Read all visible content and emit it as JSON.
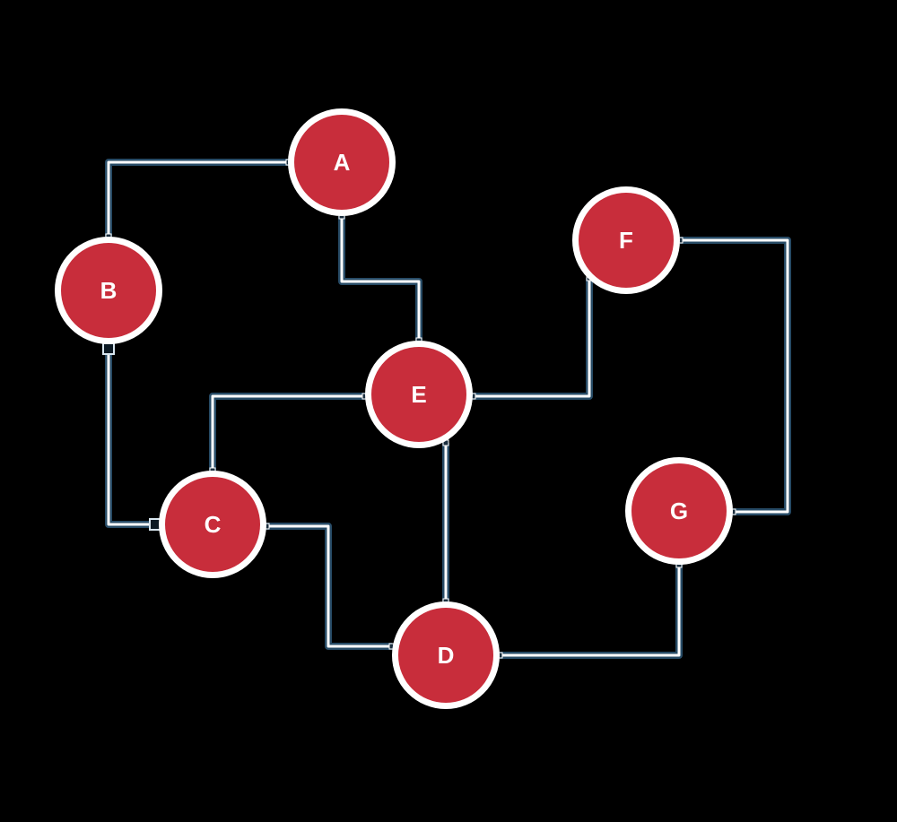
{
  "diagram": {
    "background": "#000000",
    "node_fill": "#c82d3b",
    "node_ring": "#ffffff",
    "edge_outer": "#274b66",
    "edge_inner": "#ffffff",
    "nodes": [
      {
        "id": "A",
        "label": "A"
      },
      {
        "id": "B",
        "label": "B"
      },
      {
        "id": "C",
        "label": "C"
      },
      {
        "id": "D",
        "label": "D"
      },
      {
        "id": "E",
        "label": "E"
      },
      {
        "id": "F",
        "label": "F"
      },
      {
        "id": "G",
        "label": "G"
      }
    ],
    "edges": [
      {
        "from": "A",
        "to": "B"
      },
      {
        "from": "A",
        "to": "E"
      },
      {
        "from": "B",
        "to": "C"
      },
      {
        "from": "C",
        "to": "E"
      },
      {
        "from": "C",
        "to": "D"
      },
      {
        "from": "E",
        "to": "D"
      },
      {
        "from": "E",
        "to": "F"
      },
      {
        "from": "F",
        "to": "G"
      },
      {
        "from": "G",
        "to": "D"
      }
    ]
  }
}
